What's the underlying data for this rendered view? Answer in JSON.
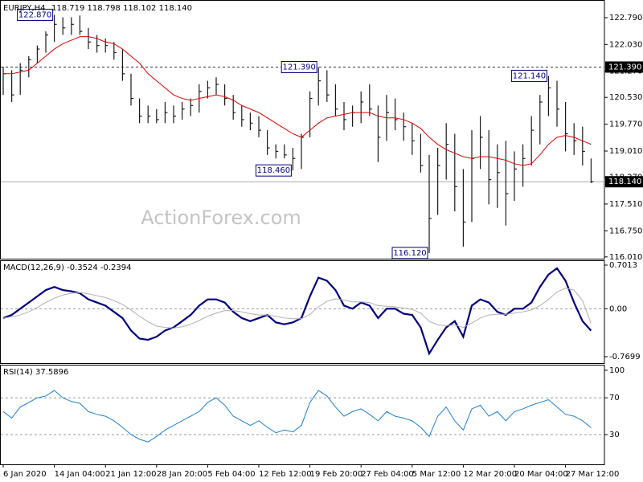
{
  "chart_data": [
    {
      "type": "ohlc",
      "title": "EURJPY,H4",
      "subtitle": "118.719 118.798 118.102 118.140",
      "watermark": "ActionForex.com",
      "categories": [
        "6 Jan 2020",
        null,
        null,
        null,
        null,
        null,
        "14 Jan 04:00",
        null,
        null,
        null,
        null,
        null,
        "21 Jan 12:00",
        null,
        null,
        null,
        null,
        null,
        "28 Jan 20:00",
        null,
        null,
        null,
        null,
        null,
        "5 Feb 04:00",
        null,
        null,
        null,
        null,
        null,
        "12 Feb 12:00",
        null,
        null,
        null,
        null,
        null,
        "19 Feb 20:00",
        null,
        null,
        null,
        null,
        null,
        "27 Feb 04:00",
        null,
        null,
        null,
        null,
        null,
        "5 Mar 12:00",
        null,
        null,
        null,
        null,
        null,
        "12 Mar 20:00",
        null,
        null,
        null,
        null,
        null,
        "20 Mar 04:00",
        null,
        null,
        null,
        null,
        null,
        "27 Mar 12:00",
        null,
        null,
        null
      ],
      "highs": [
        121.4,
        121.3,
        121.5,
        121.7,
        122.0,
        122.4,
        122.87,
        122.8,
        122.8,
        122.85,
        122.5,
        122.3,
        122.2,
        122.1,
        121.9,
        121.2,
        120.5,
        120.3,
        120.2,
        120.4,
        120.3,
        120.4,
        120.5,
        120.9,
        121.0,
        121.1,
        120.9,
        120.6,
        120.3,
        120.1,
        120.0,
        119.6,
        119.2,
        119.2,
        119.1,
        119.5,
        120.7,
        121.39,
        121.3,
        120.9,
        120.4,
        120.3,
        120.7,
        120.9,
        120.3,
        120.6,
        120.5,
        120.1,
        119.8,
        119.5,
        118.9,
        119.1,
        119.8,
        119.5,
        118.5,
        119.6,
        120.0,
        119.6,
        119.2,
        119.3,
        119.0,
        119.2,
        120.0,
        120.6,
        121.14,
        121.0,
        120.4,
        119.8,
        119.7,
        118.798
      ],
      "lows": [
        120.6,
        120.4,
        120.6,
        121.1,
        121.5,
        121.8,
        122.1,
        122.3,
        122.3,
        122.3,
        121.9,
        121.8,
        121.8,
        121.6,
        121.0,
        120.3,
        119.8,
        119.8,
        119.8,
        119.8,
        119.8,
        119.9,
        120.0,
        120.1,
        120.5,
        120.6,
        120.3,
        119.9,
        119.7,
        119.6,
        119.4,
        118.9,
        118.8,
        118.8,
        118.46,
        118.5,
        119.4,
        120.3,
        120.4,
        120.0,
        119.6,
        119.7,
        119.8,
        120.0,
        118.7,
        119.3,
        119.6,
        119.3,
        118.9,
        118.4,
        116.12,
        117.2,
        118.2,
        117.3,
        116.3,
        117.0,
        118.5,
        117.5,
        117.4,
        116.9,
        117.6,
        118.0,
        118.6,
        119.2,
        120.0,
        119.7,
        119.0,
        118.9,
        118.6,
        118.102
      ],
      "closes": [
        121.2,
        120.6,
        121.3,
        121.6,
        121.9,
        122.3,
        122.6,
        122.5,
        122.6,
        122.4,
        122.1,
        122.0,
        122.0,
        121.8,
        121.2,
        120.5,
        120.0,
        120.0,
        119.9,
        120.1,
        120.0,
        120.2,
        120.3,
        120.7,
        120.8,
        120.9,
        120.5,
        120.1,
        119.9,
        119.8,
        119.6,
        119.1,
        119.0,
        118.9,
        118.8,
        119.4,
        120.5,
        121.0,
        120.6,
        120.2,
        119.9,
        120.1,
        120.4,
        120.2,
        119.4,
        120.1,
        119.9,
        119.7,
        119.3,
        118.6,
        117.1,
        118.6,
        119.2,
        118.0,
        117.0,
        118.8,
        119.4,
        118.2,
        118.4,
        117.8,
        118.5,
        118.8,
        119.6,
        120.4,
        120.8,
        120.2,
        119.5,
        119.3,
        119.0,
        118.14
      ],
      "color": "#1a1a1a",
      "ma": {
        "color": "#e00000",
        "values": [
          121.2,
          121.2,
          121.25,
          121.3,
          121.5,
          121.7,
          121.9,
          122.05,
          122.15,
          122.25,
          122.25,
          122.2,
          122.1,
          122.05,
          121.9,
          121.7,
          121.5,
          121.2,
          121.0,
          120.8,
          120.6,
          120.5,
          120.45,
          120.5,
          120.55,
          120.6,
          120.55,
          120.45,
          120.3,
          120.2,
          120.1,
          119.95,
          119.8,
          119.65,
          119.5,
          119.4,
          119.6,
          119.8,
          119.95,
          120.0,
          120.05,
          120.1,
          120.1,
          120.1,
          120.0,
          119.95,
          119.95,
          119.9,
          119.8,
          119.65,
          119.4,
          119.2,
          119.05,
          118.95,
          118.85,
          118.8,
          118.85,
          118.85,
          118.8,
          118.75,
          118.65,
          118.6,
          118.65,
          118.9,
          119.2,
          119.4,
          119.45,
          119.4,
          119.3,
          119.2
        ]
      },
      "ylim": [
        115.96,
        123.29
      ],
      "yticks": [
        {
          "value": 122.79,
          "label": "122.790"
        },
        {
          "value": 122.03,
          "label": "122.030"
        },
        {
          "value": 121.27,
          "label": "121.270"
        },
        {
          "value": 120.53,
          "label": "120.530"
        },
        {
          "value": 119.77,
          "label": "119.770"
        },
        {
          "value": 119.01,
          "label": "119.010"
        },
        {
          "value": 118.27,
          "label": "118.270"
        },
        {
          "value": 117.51,
          "label": "117.510"
        },
        {
          "value": 116.75,
          "label": "116.750"
        },
        {
          "value": 116.01,
          "label": "116.010"
        }
      ],
      "annotations": [
        {
          "value": 122.87,
          "label": "122.870"
        },
        {
          "value": 121.39,
          "label": "121.390"
        },
        {
          "value": 118.46,
          "label": "118.460"
        },
        {
          "value": 116.12,
          "label": "116.120"
        },
        {
          "value": 121.14,
          "label": "121.140"
        }
      ],
      "hlines": [
        {
          "value": 121.39,
          "label": "121.390"
        }
      ],
      "last_price": {
        "value": 118.14,
        "label": "118.140"
      }
    },
    {
      "type": "line",
      "title": "MACD(12,26,9) -0.3524 -0.2394",
      "series": [
        {
          "color": "#000080",
          "values": [
            -0.15,
            -0.1,
            0.0,
            0.1,
            0.2,
            0.3,
            0.35,
            0.3,
            0.28,
            0.25,
            0.15,
            0.1,
            0.05,
            -0.05,
            -0.15,
            -0.35,
            -0.48,
            -0.5,
            -0.45,
            -0.35,
            -0.3,
            -0.2,
            -0.1,
            0.05,
            0.15,
            0.15,
            0.1,
            -0.05,
            -0.15,
            -0.2,
            -0.15,
            -0.1,
            -0.22,
            -0.25,
            -0.22,
            -0.15,
            0.2,
            0.5,
            0.45,
            0.3,
            0.05,
            0.0,
            0.1,
            0.05,
            -0.15,
            0.0,
            0.0,
            -0.08,
            -0.1,
            -0.3,
            -0.72,
            -0.5,
            -0.3,
            -0.2,
            -0.45,
            0.05,
            0.15,
            0.1,
            -0.05,
            -0.1,
            0,
            0,
            0.1,
            0.35,
            0.55,
            0.65,
            0.45,
            0.1,
            -0.2,
            -0.3524
          ]
        },
        {
          "color": "#b0b0b0",
          "values": [
            -0.15,
            -0.13,
            -0.1,
            -0.05,
            0.02,
            0.1,
            0.17,
            0.22,
            0.25,
            0.26,
            0.24,
            0.21,
            0.18,
            0.13,
            0.07,
            -0.02,
            -0.12,
            -0.21,
            -0.28,
            -0.3,
            -0.31,
            -0.29,
            -0.25,
            -0.19,
            -0.12,
            -0.07,
            -0.03,
            -0.03,
            -0.05,
            -0.08,
            -0.1,
            -0.1,
            -0.12,
            -0.15,
            -0.16,
            -0.16,
            -0.09,
            0.03,
            0.12,
            0.16,
            0.14,
            0.11,
            0.11,
            0.1,
            0.05,
            0.04,
            0.03,
            0.01,
            -0.01,
            -0.07,
            -0.2,
            -0.26,
            -0.27,
            -0.26,
            -0.3,
            -0.23,
            -0.15,
            -0.1,
            -0.09,
            -0.09,
            -0.07,
            -0.05,
            -0.02,
            0.05,
            0.15,
            0.27,
            0.33,
            0.3,
            0.13,
            -0.2394
          ]
        }
      ],
      "ylim": [
        -0.874,
        0.779
      ],
      "yticks": [
        0.7013,
        {
          "value": 0,
          "label": "0.00"
        },
        -0.7699
      ],
      "levels": [
        0
      ]
    },
    {
      "type": "line",
      "title": "RSI(14) 37.5896",
      "series": [
        {
          "color": "#1e7fd0",
          "values": [
            55,
            48,
            60,
            65,
            70,
            72,
            78,
            70,
            66,
            64,
            55,
            52,
            50,
            45,
            38,
            30,
            25,
            22,
            28,
            35,
            40,
            45,
            50,
            55,
            65,
            70,
            62,
            50,
            45,
            40,
            45,
            38,
            32,
            35,
            33,
            40,
            65,
            78,
            72,
            60,
            50,
            55,
            58,
            52,
            45,
            55,
            50,
            48,
            45,
            38,
            28,
            50,
            60,
            45,
            35,
            58,
            62,
            50,
            55,
            45,
            55,
            58,
            62,
            65,
            68,
            60,
            52,
            50,
            45,
            37.5896
          ]
        }
      ],
      "ylim": [
        -2.3,
        106
      ],
      "yticks": [
        100,
        70,
        30
      ],
      "levels": [
        70,
        30
      ]
    }
  ]
}
